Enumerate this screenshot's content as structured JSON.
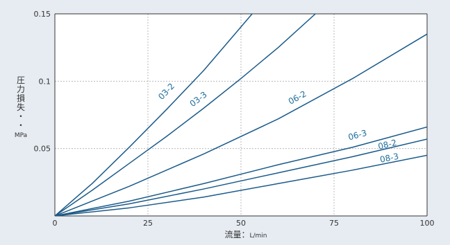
{
  "chart_data": {
    "type": "line",
    "xlabel": "流量：L/min",
    "ylabel_chars": [
      "圧",
      "力",
      "損",
      "失",
      "・",
      "・"
    ],
    "ylabel_unit": "MPa",
    "xlim": [
      0,
      100
    ],
    "ylim": [
      0,
      0.15
    ],
    "x_ticks": [
      0,
      25,
      50,
      75,
      100
    ],
    "x_tick_labels": [
      "0",
      "25",
      "50",
      "75",
      "100"
    ],
    "y_ticks": [
      0.05,
      0.1,
      0.15
    ],
    "y_tick_labels": [
      "0.05",
      "0.1",
      "0.15"
    ],
    "grid": true,
    "colors": {
      "line": "#1a5a8a",
      "label": "#1f6e9c",
      "grid": "#b8b8b8",
      "axis": "#333333",
      "background": "#e6ecf2",
      "plot_background": "#ffffff"
    },
    "series": [
      {
        "name": "03-2",
        "x": [
          0,
          10,
          20,
          30,
          40,
          53
        ],
        "y": [
          0,
          0.024,
          0.051,
          0.079,
          0.108,
          0.15
        ],
        "label_at": [
          30.5,
          0.091
        ]
      },
      {
        "name": "03-3",
        "x": [
          0,
          10,
          20,
          30,
          40,
          50,
          60,
          70
        ],
        "y": [
          0,
          0.019,
          0.039,
          0.059,
          0.08,
          0.102,
          0.125,
          0.15
        ],
        "label_at": [
          39,
          0.085
        ]
      },
      {
        "name": "06-2",
        "x": [
          0,
          20,
          40,
          60,
          80,
          100
        ],
        "y": [
          0,
          0.022,
          0.046,
          0.072,
          0.102,
          0.135
        ],
        "label_at": [
          65.5,
          0.086
        ]
      },
      {
        "name": "06-3",
        "x": [
          0,
          20,
          40,
          60,
          80,
          100
        ],
        "y": [
          0,
          0.011,
          0.024,
          0.038,
          0.051,
          0.066
        ],
        "label_at": [
          81.5,
          0.058
        ]
      },
      {
        "name": "08-2",
        "x": [
          0,
          20,
          40,
          60,
          80,
          100
        ],
        "y": [
          0,
          0.009,
          0.02,
          0.032,
          0.044,
          0.057
        ],
        "label_at": [
          89.5,
          0.051
        ]
      },
      {
        "name": "08-3",
        "x": [
          0,
          20,
          40,
          60,
          80,
          100
        ],
        "y": [
          0,
          0.006,
          0.014,
          0.024,
          0.034,
          0.045
        ],
        "label_at": [
          90,
          0.041
        ]
      }
    ]
  }
}
